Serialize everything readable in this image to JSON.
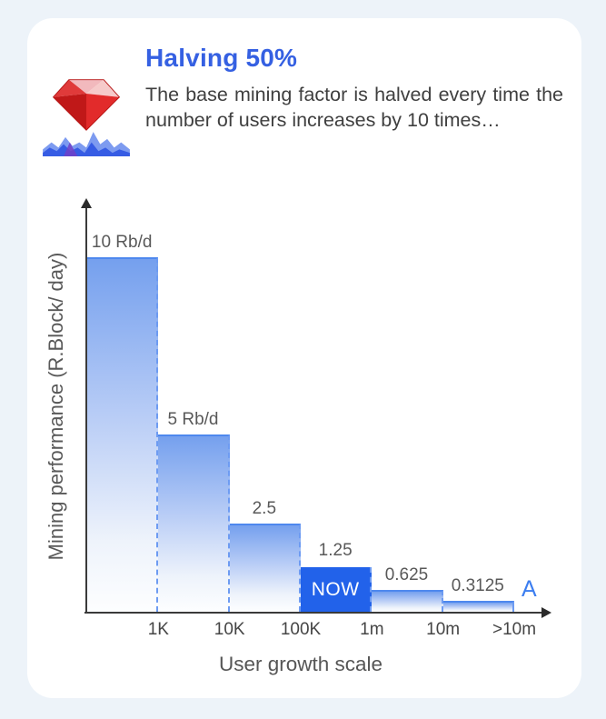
{
  "page": {
    "background_color": "#edf3f9",
    "card_color": "#ffffff"
  },
  "header": {
    "title": "Halving 50%",
    "title_color": "#3560e2",
    "description": "The base mining factor is halved every time the number of users increases by 10 times…",
    "icon": "ruby-mining-icon"
  },
  "chart_data": {
    "type": "bar",
    "title": "",
    "xlabel": "User growth scale",
    "ylabel": "Mining performance (R.Block/ day)",
    "categories": [
      "1K",
      "10K",
      "100K",
      "1m",
      "10m",
      ">10m"
    ],
    "values": [
      10,
      5,
      2.5,
      1.25,
      0.625,
      0.3125
    ],
    "bar_labels": [
      "10 Rb/d",
      "5 Rb/d",
      "2.5",
      "1.25",
      "0.625",
      "0.3125"
    ],
    "now_index": 3,
    "now_label": "NOW",
    "end_label": "A",
    "ylim": [
      0,
      10.9
    ],
    "grid": false,
    "legend": "none",
    "colors": {
      "bar_gradient_top": "#75a0ee",
      "bar_gradient_bottom": "#ffffff",
      "bar_top_border": "#4e88ee",
      "bar_dashed_border": "#6d9bf2",
      "now_bar": "#2262ea",
      "axis": "#3a3a3a",
      "label_gray": "#595959",
      "end_label_blue": "#3c7ef0"
    }
  }
}
